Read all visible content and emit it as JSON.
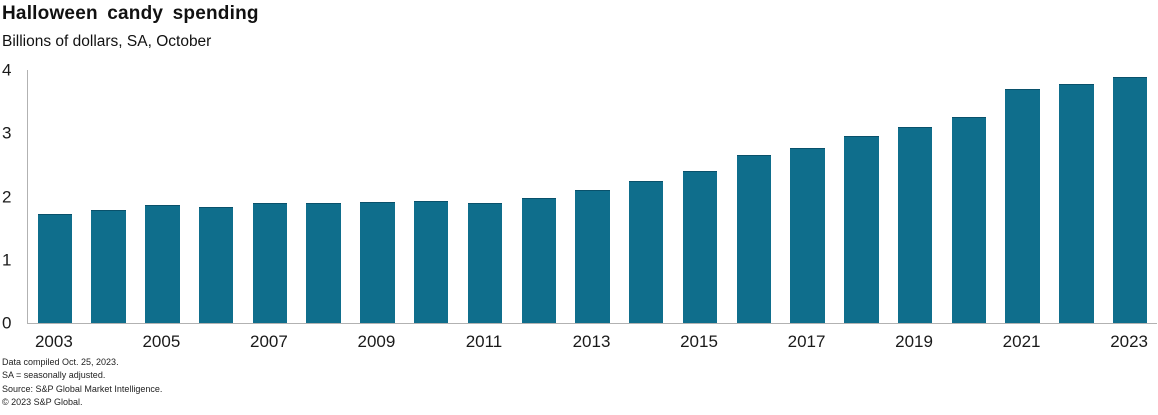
{
  "header": {
    "title": "Halloween candy spending",
    "subtitle": "Billions of dollars, SA, October"
  },
  "chart_data": {
    "type": "bar",
    "title": "Halloween candy spending",
    "subtitle": "Billions of dollars, SA, October",
    "xlabel": "",
    "ylabel": "Billions of dollars",
    "categories": [
      "2003",
      "2004",
      "2005",
      "2006",
      "2007",
      "2008",
      "2009",
      "2010",
      "2011",
      "2012",
      "2013",
      "2014",
      "2015",
      "2016",
      "2017",
      "2018",
      "2019",
      "2020",
      "2021",
      "2022",
      "2023"
    ],
    "values": [
      1.72,
      1.78,
      1.86,
      1.84,
      1.9,
      1.89,
      1.91,
      1.93,
      1.89,
      1.97,
      2.1,
      2.25,
      2.41,
      2.65,
      2.77,
      2.95,
      3.1,
      3.26,
      3.7,
      3.78,
      3.89
    ],
    "ylim": [
      0,
      4
    ],
    "yticks": [
      0,
      1,
      2,
      3,
      4
    ],
    "xtick_labels": [
      "2003",
      "2005",
      "2007",
      "2009",
      "2011",
      "2013",
      "2015",
      "2017",
      "2019",
      "2021",
      "2023"
    ],
    "xtick_every": 2,
    "grid": false,
    "legend": "none",
    "bar_color": "#0f6e8c",
    "axis_color": "#b2b2b2",
    "text_color": "#1a1a1a"
  },
  "footer": {
    "lines": [
      "Data compiled Oct. 25, 2023.",
      "SA = seasonally adjusted.",
      "Source: S&P Global Market Intelligence.",
      "© 2023 S&P Global."
    ]
  }
}
